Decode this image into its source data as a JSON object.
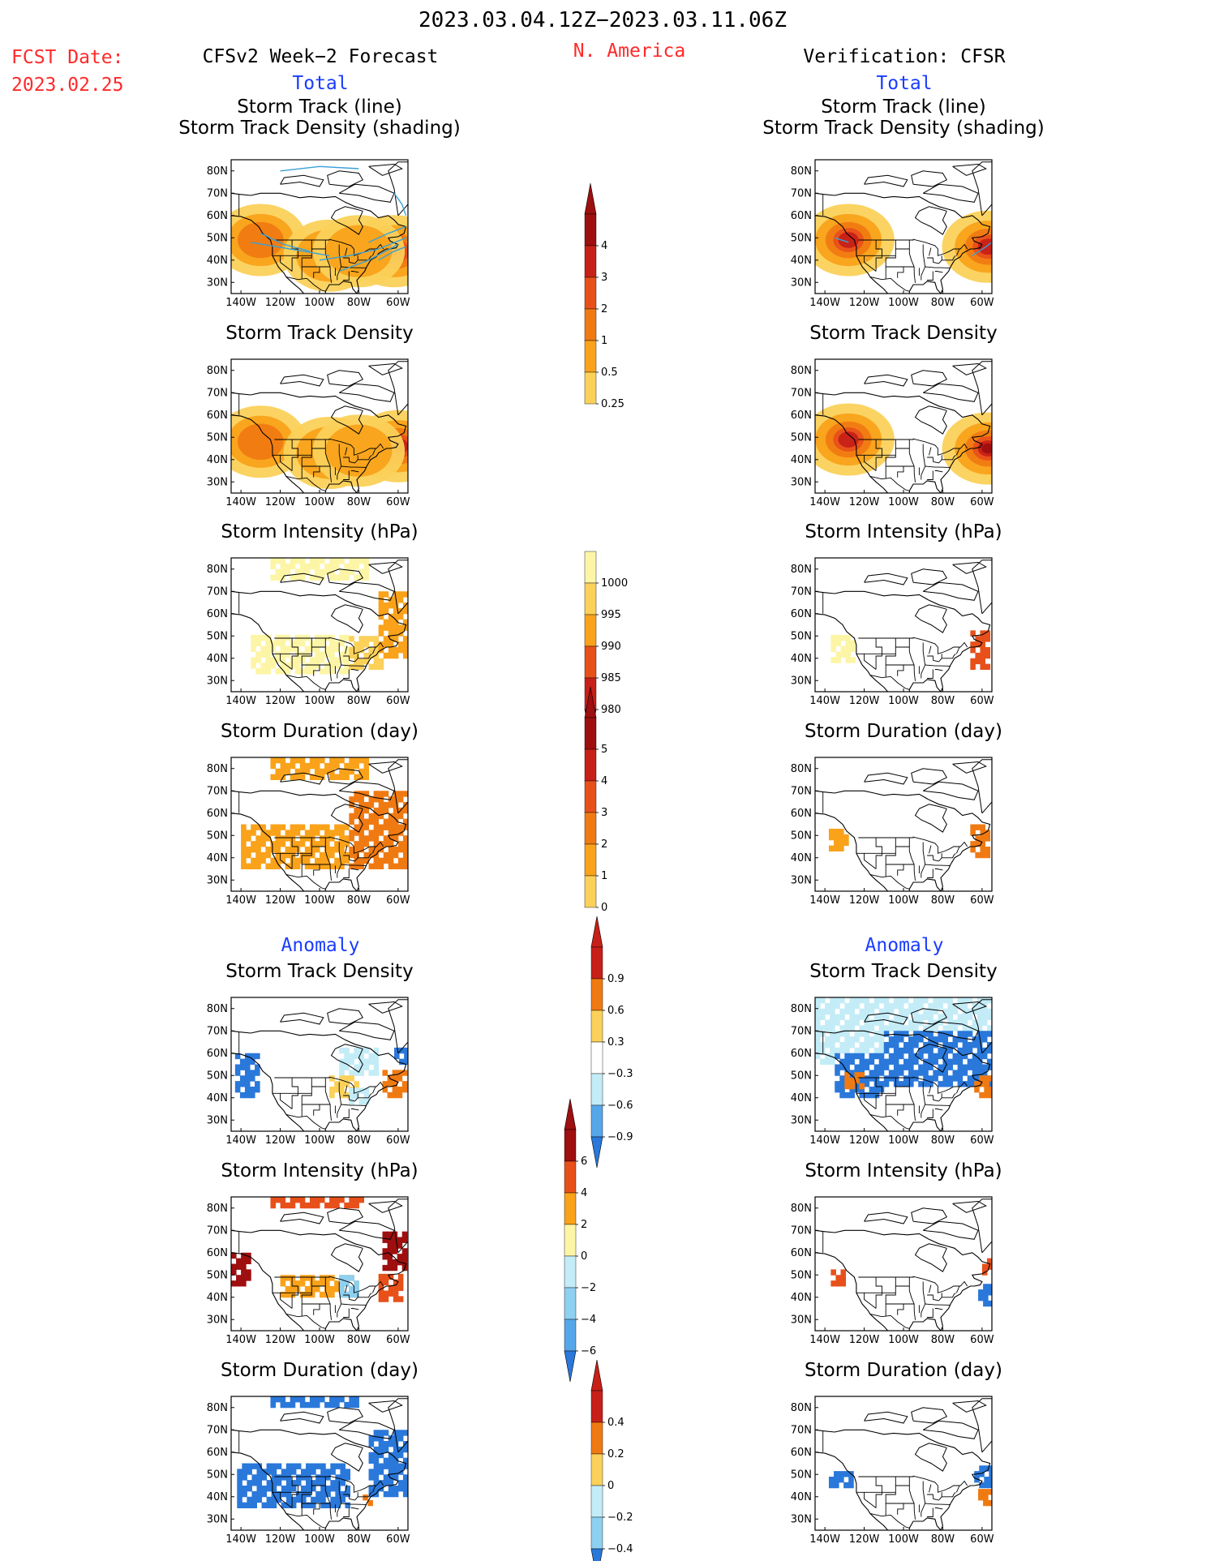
{
  "header": {
    "period": "2023.03.04.12Z−2023.03.11.06Z",
    "region": "N. America",
    "fcst_label": "FCST Date:",
    "fcst_date": "2023.02.25",
    "left_title": "CFSv2 Week−2 Forecast",
    "right_title": "Verification: CFSR",
    "total_left": "Total",
    "total_right": "Total",
    "anomaly_left": "Anomaly",
    "anomaly_right": "Anomaly"
  },
  "colors": {
    "red_text": "#ff2a2a",
    "blue_text": "#1a3cff",
    "pos_scale": [
      "#fdf5a6",
      "#fbd15a",
      "#f9a21a",
      "#f07a12",
      "#e8501a",
      "#c72018",
      "#9e0f0f"
    ],
    "neg_scale": [
      "#c3ecf7",
      "#8ed0f0",
      "#56a7ea",
      "#2a78da",
      "#1452c0"
    ],
    "state_lines": "#000000",
    "track_lines": "#3aa0d8"
  },
  "chart_data": [
    {
      "type": "heatmap",
      "panel": "forecast-total-track-line",
      "title": [
        "Storm Track (line)",
        "Storm Track Density (shading)"
      ],
      "x_ticks": [
        "140W",
        "120W",
        "100W",
        "80W",
        "60W"
      ],
      "y_ticks": [
        "80N",
        "70N",
        "60N",
        "50N",
        "40N",
        "30N"
      ],
      "xlim": [
        -145,
        -55
      ],
      "ylim": [
        25,
        85
      ],
      "variable": "density",
      "hotspots": [
        {
          "lon": -62,
          "lat": 44,
          "value": 4
        },
        {
          "lon": -130,
          "lat": 49,
          "value": 1
        },
        {
          "lon": -95,
          "lat": 42,
          "value": 0.5
        },
        {
          "lon": -80,
          "lat": 44,
          "value": 0.5
        }
      ],
      "tracks": true
    },
    {
      "type": "heatmap",
      "panel": "verification-total-track-line",
      "title": [
        "Storm Track (line)",
        "Storm Track Density (shading)"
      ],
      "x_ticks": [
        "140W",
        "120W",
        "100W",
        "80W",
        "60W"
      ],
      "y_ticks": [
        "80N",
        "70N",
        "60N",
        "50N",
        "40N",
        "30N"
      ],
      "xlim": [
        -145,
        -55
      ],
      "ylim": [
        25,
        85
      ],
      "variable": "density",
      "hotspots": [
        {
          "lon": -128,
          "lat": 49,
          "value": 3.5
        },
        {
          "lon": -57,
          "lat": 46,
          "value": 3.5
        }
      ],
      "tracks": true
    },
    {
      "type": "heatmap",
      "panel": "forecast-total-density",
      "title": [
        "Storm Track Density"
      ],
      "x_ticks": [
        "140W",
        "120W",
        "100W",
        "80W",
        "60W"
      ],
      "y_ticks": [
        "80N",
        "70N",
        "60N",
        "50N",
        "40N",
        "30N"
      ],
      "xlim": [
        -145,
        -55
      ],
      "ylim": [
        25,
        85
      ],
      "variable": "density",
      "hotspots": [
        {
          "lon": -60,
          "lat": 46,
          "value": 4
        },
        {
          "lon": -130,
          "lat": 48,
          "value": 1
        },
        {
          "lon": -95,
          "lat": 43,
          "value": 0.5
        },
        {
          "lon": -80,
          "lat": 44,
          "value": 0.5
        }
      ]
    },
    {
      "type": "heatmap",
      "panel": "verification-total-density",
      "title": [
        "Storm Track Density"
      ],
      "x_ticks": [
        "140W",
        "120W",
        "100W",
        "80W",
        "60W"
      ],
      "y_ticks": [
        "80N",
        "70N",
        "60N",
        "50N",
        "40N",
        "30N"
      ],
      "xlim": [
        -145,
        -55
      ],
      "ylim": [
        25,
        85
      ],
      "variable": "density",
      "hotspots": [
        {
          "lon": -128,
          "lat": 49,
          "value": 3.5
        },
        {
          "lon": -57,
          "lat": 45,
          "value": 4
        }
      ]
    },
    {
      "type": "heatmap",
      "panel": "forecast-total-intensity",
      "title": [
        "Storm Intensity (hPa)"
      ],
      "x_ticks": [
        "140W",
        "120W",
        "100W",
        "80W",
        "60W"
      ],
      "y_ticks": [
        "80N",
        "70N",
        "60N",
        "50N",
        "40N",
        "30N"
      ],
      "xlim": [
        -145,
        -55
      ],
      "ylim": [
        25,
        85
      ],
      "variable": "intensity",
      "regions": [
        {
          "lon": [
            -135,
            -85
          ],
          "lat": [
            33,
            50
          ],
          "value": 1000
        },
        {
          "lon": [
            -85,
            -68
          ],
          "lat": [
            35,
            50
          ],
          "value": 995
        },
        {
          "lon": [
            -70,
            -56
          ],
          "lat": [
            40,
            68
          ],
          "value": 992
        },
        {
          "lon": [
            -125,
            -75
          ],
          "lat": [
            75,
            83
          ],
          "value": 1000
        }
      ]
    },
    {
      "type": "heatmap",
      "panel": "verification-total-intensity",
      "title": [
        "Storm Intensity (hPa)"
      ],
      "x_ticks": [
        "140W",
        "120W",
        "100W",
        "80W",
        "60W"
      ],
      "y_ticks": [
        "80N",
        "70N",
        "60N",
        "50N",
        "40N",
        "30N"
      ],
      "xlim": [
        -145,
        -55
      ],
      "ylim": [
        25,
        85
      ],
      "variable": "intensity",
      "regions": [
        {
          "lon": [
            -137,
            -125
          ],
          "lat": [
            38,
            50
          ],
          "value": 1000
        },
        {
          "lon": [
            -66,
            -56
          ],
          "lat": [
            35,
            52
          ],
          "value": 988
        }
      ]
    },
    {
      "type": "heatmap",
      "panel": "forecast-total-duration",
      "title": [
        "Storm Duration (day)"
      ],
      "x_ticks": [
        "140W",
        "120W",
        "100W",
        "80W",
        "60W"
      ],
      "y_ticks": [
        "80N",
        "70N",
        "60N",
        "50N",
        "40N",
        "30N"
      ],
      "xlim": [
        -145,
        -55
      ],
      "ylim": [
        25,
        85
      ],
      "variable": "duration",
      "regions": [
        {
          "lon": [
            -140,
            -85
          ],
          "lat": [
            35,
            55
          ],
          "value": 1.5
        },
        {
          "lon": [
            -85,
            -56
          ],
          "lat": [
            35,
            68
          ],
          "value": 2
        },
        {
          "lon": [
            -125,
            -75
          ],
          "lat": [
            75,
            83
          ],
          "value": 1
        }
      ]
    },
    {
      "type": "heatmap",
      "panel": "verification-total-duration",
      "title": [
        "Storm Duration (day)"
      ],
      "x_ticks": [
        "140W",
        "120W",
        "100W",
        "80W",
        "60W"
      ],
      "y_ticks": [
        "80N",
        "70N",
        "60N",
        "50N",
        "40N",
        "30N"
      ],
      "xlim": [
        -145,
        -55
      ],
      "ylim": [
        25,
        85
      ],
      "variable": "duration",
      "regions": [
        {
          "lon": [
            -138,
            -128
          ],
          "lat": [
            43,
            52
          ],
          "value": 1.5
        },
        {
          "lon": [
            -66,
            -56
          ],
          "lat": [
            40,
            55
          ],
          "value": 2
        }
      ]
    },
    {
      "type": "heatmap",
      "panel": "forecast-anomaly-density",
      "title": [
        "Storm Track Density"
      ],
      "x_ticks": [
        "140W",
        "120W",
        "100W",
        "80W",
        "60W"
      ],
      "y_ticks": [
        "80N",
        "70N",
        "60N",
        "50N",
        "40N",
        "30N"
      ],
      "xlim": [
        -145,
        -55
      ],
      "ylim": [
        25,
        85
      ],
      "variable": "anom",
      "regions": [
        {
          "lon": [
            -143,
            -132
          ],
          "lat": [
            40,
            60
          ],
          "value": -0.7
        },
        {
          "lon": [
            -62,
            -56
          ],
          "lat": [
            55,
            62
          ],
          "value": -0.7
        },
        {
          "lon": [
            -90,
            -70
          ],
          "lat": [
            50,
            62
          ],
          "value": -0.3
        },
        {
          "lon": [
            -68,
            -57
          ],
          "lat": [
            40,
            52
          ],
          "value": 0.8
        },
        {
          "lon": [
            -95,
            -80
          ],
          "lat": [
            40,
            48
          ],
          "value": 0.3
        },
        {
          "lon": [
            -85,
            -76
          ],
          "lat": [
            37,
            44
          ],
          "value": -0.3
        }
      ]
    },
    {
      "type": "heatmap",
      "panel": "verification-anomaly-density",
      "title": [
        "Storm Track Density"
      ],
      "x_ticks": [
        "140W",
        "120W",
        "100W",
        "80W",
        "60W"
      ],
      "y_ticks": [
        "80N",
        "70N",
        "60N",
        "50N",
        "40N",
        "30N"
      ],
      "xlim": [
        -145,
        -55
      ],
      "ylim": [
        25,
        85
      ],
      "variable": "anom",
      "regions": [
        {
          "lon": [
            -145,
            -55
          ],
          "lat": [
            55,
            83
          ],
          "value": -0.3
        },
        {
          "lon": [
            -110,
            -57
          ],
          "lat": [
            45,
            70
          ],
          "value": -0.7
        },
        {
          "lon": [
            -135,
            -110
          ],
          "lat": [
            40,
            60
          ],
          "value": -0.6
        },
        {
          "lon": [
            -130,
            -122
          ],
          "lat": [
            44,
            51
          ],
          "value": 0.8
        },
        {
          "lon": [
            -64,
            -56
          ],
          "lat": [
            40,
            50
          ],
          "value": 0.8
        }
      ]
    },
    {
      "type": "heatmap",
      "panel": "forecast-anomaly-intensity",
      "title": [
        "Storm Intensity (hPa)"
      ],
      "x_ticks": [
        "140W",
        "120W",
        "100W",
        "80W",
        "60W"
      ],
      "y_ticks": [
        "80N",
        "70N",
        "60N",
        "50N",
        "40N",
        "30N"
      ],
      "xlim": [
        -145,
        -55
      ],
      "ylim": [
        25,
        85
      ],
      "variable": "anom_int",
      "regions": [
        {
          "lon": [
            -145,
            -136
          ],
          "lat": [
            45,
            60
          ],
          "value": 6
        },
        {
          "lon": [
            -68,
            -56
          ],
          "lat": [
            52,
            68
          ],
          "value": 6
        },
        {
          "lon": [
            -120,
            -80
          ],
          "lat": [
            40,
            50
          ],
          "value": 3
        },
        {
          "lon": [
            -70,
            -58
          ],
          "lat": [
            38,
            50
          ],
          "value": 4
        },
        {
          "lon": [
            -90,
            -80
          ],
          "lat": [
            40,
            48
          ],
          "value": -2
        },
        {
          "lon": [
            -125,
            -78
          ],
          "lat": [
            80,
            84
          ],
          "value": 5
        }
      ]
    },
    {
      "type": "heatmap",
      "panel": "verification-anomaly-intensity",
      "title": [
        "Storm Intensity (hPa)"
      ],
      "x_ticks": [
        "140W",
        "120W",
        "100W",
        "80W",
        "60W"
      ],
      "y_ticks": [
        "80N",
        "70N",
        "60N",
        "50N",
        "40N",
        "30N"
      ],
      "xlim": [
        -145,
        -55
      ],
      "ylim": [
        25,
        85
      ],
      "variable": "anom_int",
      "regions": [
        {
          "lon": [
            -137,
            -130
          ],
          "lat": [
            45,
            52
          ],
          "value": 5
        },
        {
          "lon": [
            -62,
            -56
          ],
          "lat": [
            36,
            46
          ],
          "value": -4
        },
        {
          "lon": [
            -60,
            -56
          ],
          "lat": [
            50,
            56
          ],
          "value": 5
        }
      ]
    },
    {
      "type": "heatmap",
      "panel": "forecast-anomaly-duration",
      "title": [
        "Storm Duration (day)"
      ],
      "x_ticks": [
        "140W",
        "120W",
        "100W",
        "80W",
        "60W"
      ],
      "y_ticks": [
        "80N",
        "70N",
        "60N",
        "50N",
        "40N",
        "30N"
      ],
      "xlim": [
        -145,
        -55
      ],
      "ylim": [
        25,
        85
      ],
      "variable": "anom_dur",
      "regions": [
        {
          "lon": [
            -142,
            -85
          ],
          "lat": [
            35,
            55
          ],
          "value": -0.4
        },
        {
          "lon": [
            -75,
            -57
          ],
          "lat": [
            40,
            70
          ],
          "value": -0.4
        },
        {
          "lon": [
            -125,
            -80
          ],
          "lat": [
            80,
            84
          ],
          "value": -0.4
        },
        {
          "lon": [
            -78,
            -74
          ],
          "lat": [
            36,
            40
          ],
          "value": 0.3
        }
      ]
    },
    {
      "type": "heatmap",
      "panel": "verification-anomaly-duration",
      "title": [
        "Storm Duration (day)"
      ],
      "x_ticks": [
        "140W",
        "120W",
        "100W",
        "80W",
        "60W"
      ],
      "y_ticks": [
        "80N",
        "70N",
        "60N",
        "50N",
        "40N",
        "30N"
      ],
      "xlim": [
        -145,
        -55
      ],
      "ylim": [
        25,
        85
      ],
      "variable": "anom_dur",
      "regions": [
        {
          "lon": [
            -138,
            -126
          ],
          "lat": [
            44,
            51
          ],
          "value": -0.4
        },
        {
          "lon": [
            -64,
            -56
          ],
          "lat": [
            44,
            52
          ],
          "value": -0.4
        },
        {
          "lon": [
            -62,
            -56
          ],
          "lat": [
            36,
            42
          ],
          "value": 0.3
        }
      ]
    }
  ],
  "colorbars": [
    {
      "name": "density",
      "labels": [
        "4",
        "3",
        "2",
        "1",
        "0.5",
        "0.25"
      ]
    },
    {
      "name": "intensity",
      "labels": [
        "1000",
        "995",
        "990",
        "985",
        "980"
      ]
    },
    {
      "name": "duration",
      "labels": [
        "5",
        "4",
        "3",
        "2",
        "1",
        "0"
      ]
    },
    {
      "name": "anom",
      "labels": [
        "0.9",
        "0.6",
        "0.3",
        "−0.3",
        "−0.6",
        "−0.9"
      ]
    },
    {
      "name": "anom_int",
      "labels": [
        "6",
        "4",
        "2",
        "0",
        "−2",
        "−4",
        "−6"
      ]
    },
    {
      "name": "anom_dur",
      "labels": [
        "0.4",
        "0.2",
        "0",
        "−0.2",
        "−0.4"
      ]
    }
  ]
}
